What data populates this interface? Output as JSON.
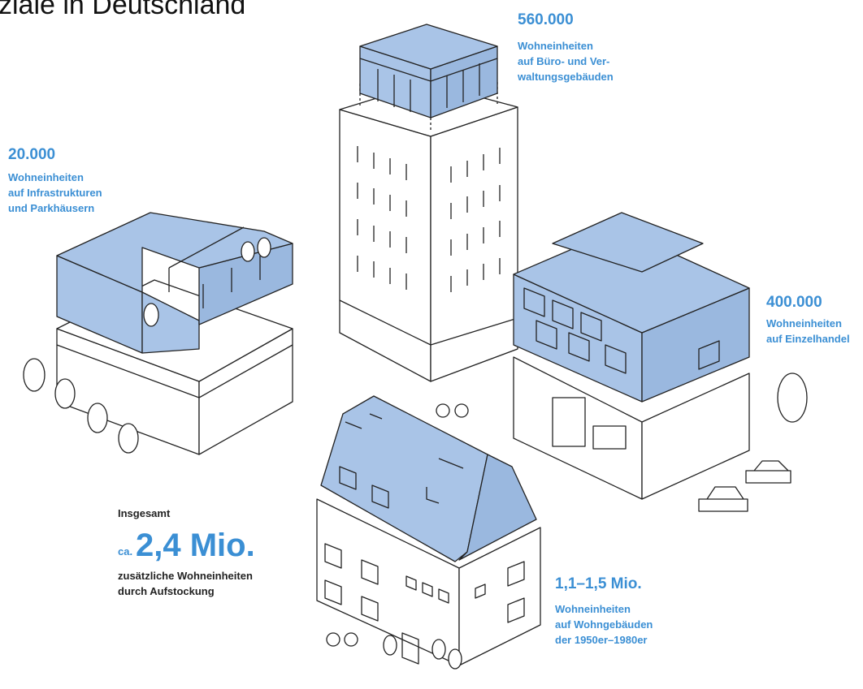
{
  "title": "ziale in Deutschland",
  "callouts": [
    {
      "value": "560.000",
      "lines": [
        "Wohneinheiten",
        "auf Büro- und Ver-",
        "waltungsgebäuden"
      ]
    },
    {
      "value": "20.000",
      "lines": [
        "Wohneinheiten",
        "auf Infrastrukturen",
        "und Parkhäusern"
      ]
    },
    {
      "value": "400.000",
      "lines": [
        "Wohneinheiten",
        "auf Einzelhandel"
      ]
    },
    {
      "value": "1,1–1,5 Mio.",
      "lines": [
        "Wohneinheiten",
        "auf Wohngebäuden",
        "der 1950er–1980er"
      ]
    }
  ],
  "total": {
    "label": "Insgesamt",
    "prefix": "ca.",
    "value": "2,4 Mio.",
    "lines": [
      "zusätzliche Wohneinheiten",
      "durch Aufstockung"
    ]
  }
}
